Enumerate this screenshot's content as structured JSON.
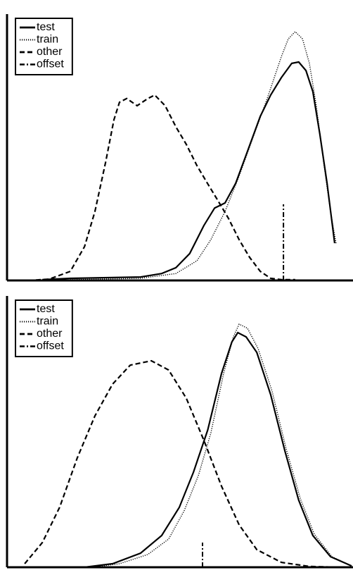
{
  "chart_data": [
    {
      "type": "line",
      "xlim": [
        0,
        100
      ],
      "ylim": [
        0,
        100
      ],
      "legend": "upper left",
      "series": [
        {
          "name": "test",
          "color": "#000000",
          "style": "solid",
          "x": [
            10.2,
            18.3,
            38.6,
            44.7,
            48.8,
            52.8,
            56.9,
            60.0,
            63.0,
            66.1,
            69.1,
            73.2,
            76.2,
            79.3,
            82.3,
            84.3,
            86.4,
            88.4,
            90.4,
            92.5,
            94.7
          ],
          "values": [
            0.3,
            0.8,
            1.3,
            2.6,
            4.8,
            10.1,
            20.6,
            27.2,
            29.1,
            36.5,
            47.1,
            61.6,
            69.6,
            76.2,
            81.5,
            82.0,
            78.8,
            70.9,
            55.0,
            36.5,
            14.0
          ]
        },
        {
          "name": "train",
          "color": "#000000",
          "style": "dotted",
          "x": [
            18.3,
            38.6,
            48.8,
            54.9,
            58.9,
            63.0,
            67.1,
            71.1,
            75.2,
            79.3,
            81.3,
            83.3,
            85.4,
            87.4,
            89.4,
            91.5,
            93.5,
            95.1
          ],
          "values": [
            0.3,
            0.8,
            2.6,
            7.4,
            15.3,
            25.9,
            39.2,
            53.7,
            68.3,
            84.1,
            90.7,
            93.4,
            90.7,
            81.5,
            65.6,
            44.4,
            25.9,
            14.0
          ]
        },
        {
          "name": "other",
          "color": "#000000",
          "style": "dashed",
          "x": [
            6.1,
            12.2,
            18.3,
            22.4,
            25.4,
            28.5,
            30.9,
            32.5,
            34.6,
            37.6,
            40.7,
            42.7,
            45.7,
            48.8,
            51.8,
            54.9,
            57.9,
            61.0,
            64.0,
            67.1,
            70.1,
            73.2,
            76.2,
            79.3,
            83.3
          ],
          "values": [
            0,
            0.5,
            3.4,
            12.7,
            25.9,
            44.4,
            60.3,
            66.9,
            68.3,
            65.6,
            68.3,
            69.6,
            65.6,
            57.7,
            51.1,
            43.1,
            36.5,
            29.9,
            23.3,
            15.3,
            8.7,
            3.4,
            0.8,
            0.3,
            0.3
          ]
        },
        {
          "name": "offset",
          "color": "#000000",
          "style": "dashdot",
          "x": [
            79.9,
            79.9
          ],
          "values": [
            0,
            28.6
          ]
        }
      ]
    },
    {
      "type": "line",
      "xlim": [
        0,
        100
      ],
      "ylim": [
        0,
        100
      ],
      "legend": "upper left",
      "series": [
        {
          "name": "test",
          "color": "#000000",
          "style": "solid",
          "x": [
            22.4,
            30.5,
            38.6,
            44.7,
            49.8,
            53.9,
            58.0,
            62.0,
            65.0,
            66.7,
            69.1,
            72.2,
            76.2,
            80.3,
            84.3,
            88.4,
            93.5,
            99.6
          ],
          "values": [
            0,
            1.3,
            5.2,
            11.7,
            22.1,
            35.1,
            50.6,
            71.4,
            83.1,
            86.5,
            84.9,
            79.2,
            63.6,
            42.9,
            24.7,
            11.7,
            3.9,
            0.5
          ]
        },
        {
          "name": "train",
          "color": "#000000",
          "style": "dotted",
          "x": [
            24.4,
            32.5,
            40.7,
            46.7,
            51.2,
            55.3,
            58.9,
            62.6,
            65.4,
            67.1,
            69.5,
            72.6,
            76.6,
            80.7,
            84.8,
            88.8,
            93.9,
            99.6
          ],
          "values": [
            0,
            1.3,
            4.7,
            10.4,
            20.8,
            33.8,
            49.4,
            71.4,
            84.9,
            89.6,
            88.1,
            80.5,
            64.9,
            43.6,
            25.2,
            12.2,
            3.9,
            0.5
          ]
        },
        {
          "name": "other",
          "color": "#000000",
          "style": "dashed",
          "x": [
            5.1,
            10.2,
            15.2,
            20.3,
            25.4,
            30.5,
            35.6,
            41.7,
            46.7,
            51.8,
            56.9,
            62.0,
            67.1,
            72.2,
            79.3,
            87.4,
            95.5
          ],
          "values": [
            1.3,
            9.1,
            22.1,
            40.3,
            55.8,
            67.5,
            74.5,
            76.1,
            72.7,
            62.3,
            46.8,
            29.9,
            15.6,
            6.5,
            1.8,
            0.3,
            0
          ]
        },
        {
          "name": "offset",
          "color": "#000000",
          "style": "dashdot",
          "x": [
            56.5,
            56.5
          ],
          "values": [
            0,
            9.1
          ]
        }
      ]
    }
  ]
}
